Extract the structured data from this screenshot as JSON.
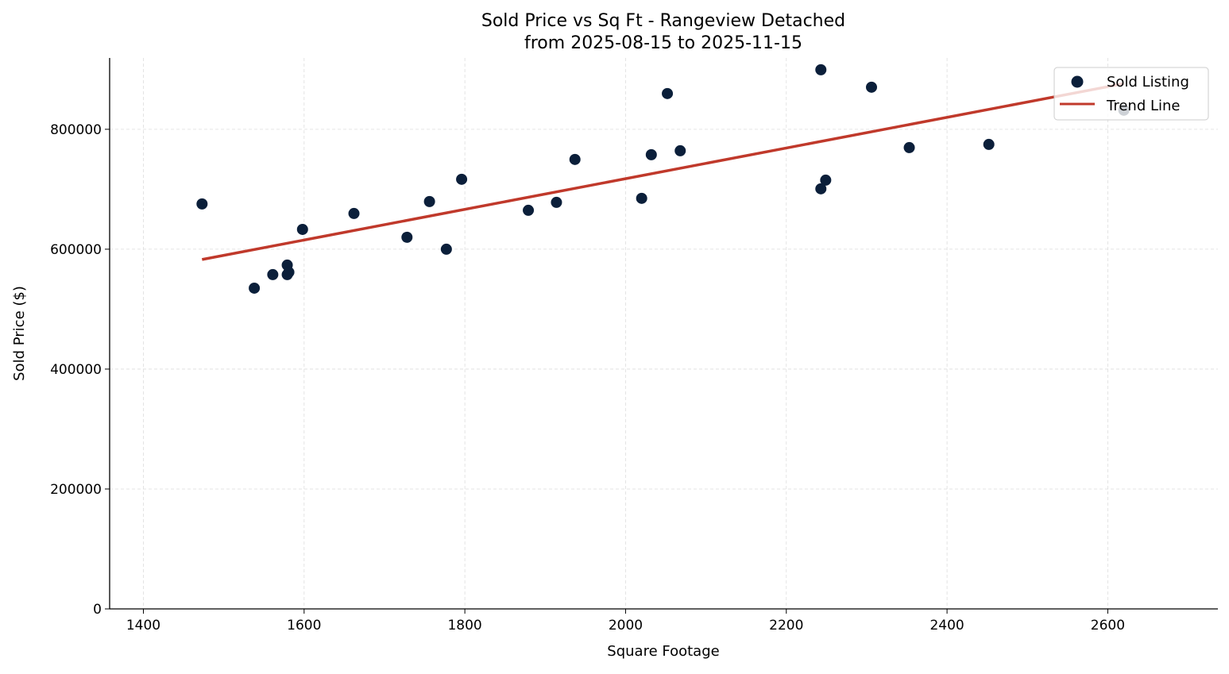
{
  "chart_data": {
    "type": "scatter",
    "title": "Sold Price vs Sq Ft - Rangeview Detached",
    "subtitle": "from 2025-08-15 to 2025-11-15",
    "xlabel": "Square Footage",
    "ylabel": "Sold Price ($)",
    "xlim": [
      1358,
      2737
    ],
    "ylim": [
      0,
      919000
    ],
    "xticks": [
      1400,
      1600,
      1800,
      2000,
      2200,
      2400,
      2600
    ],
    "yticks": [
      0,
      200000,
      400000,
      600000,
      800000
    ],
    "grid": true,
    "legend_position": "top-right",
    "colors": {
      "points": "#0b1f3a",
      "trend": "#c0392b"
    },
    "series": [
      {
        "name": "Sold Listing",
        "type": "scatter",
        "points": [
          [
            1473,
            675500
          ],
          [
            1538,
            535000
          ],
          [
            1561,
            557600
          ],
          [
            1579,
            573500
          ],
          [
            1579,
            557600
          ],
          [
            1581,
            561600
          ],
          [
            1598,
            633000
          ],
          [
            1662,
            659600
          ],
          [
            1728,
            619900
          ],
          [
            1756,
            679500
          ],
          [
            1777,
            600000
          ],
          [
            1796,
            716600
          ],
          [
            1879,
            664900
          ],
          [
            1914,
            678100
          ],
          [
            1937,
            749700
          ],
          [
            2020,
            684800
          ],
          [
            2032,
            757600
          ],
          [
            2052,
            859600
          ],
          [
            2068,
            764200
          ],
          [
            2243,
            899300
          ],
          [
            2243,
            700700
          ],
          [
            2249,
            715200
          ],
          [
            2306,
            870200
          ],
          [
            2353,
            769500
          ],
          [
            2452,
            774800
          ],
          [
            2620,
            831800
          ]
        ]
      },
      {
        "name": "Trend Line",
        "type": "line",
        "points": [
          [
            1473,
            582800
          ],
          [
            2620,
            876200
          ]
        ]
      }
    ]
  }
}
